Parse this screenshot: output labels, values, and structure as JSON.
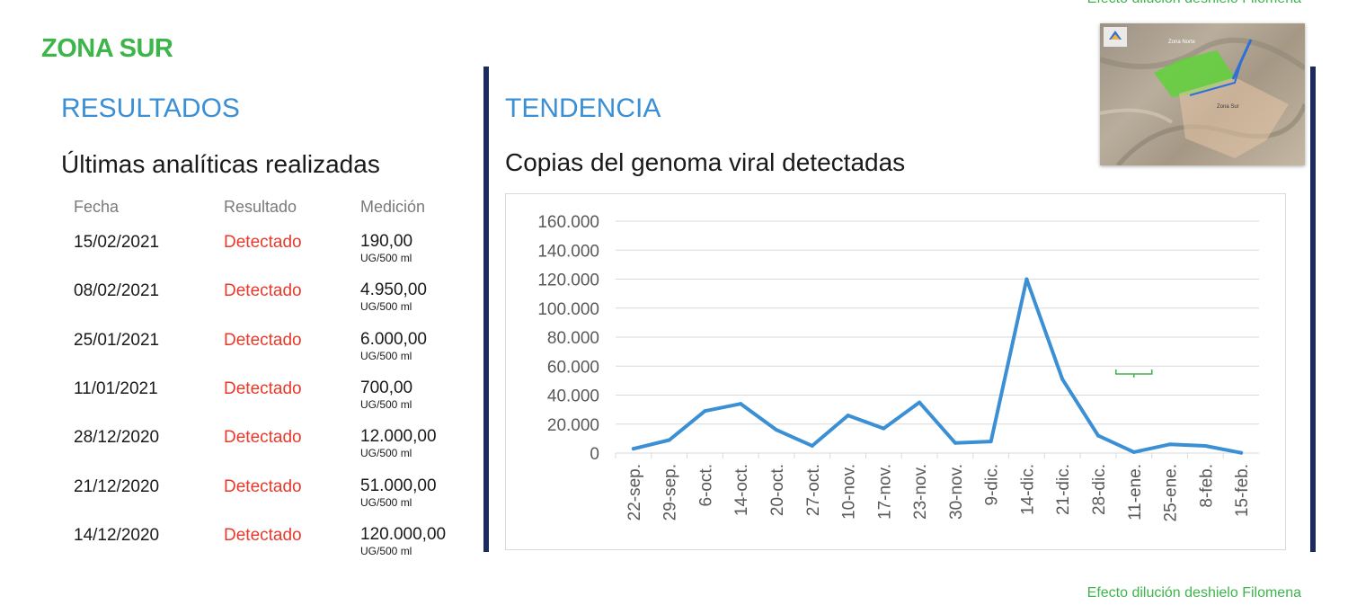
{
  "header": {
    "top_note": "Efecto dilución deshielo Filomena",
    "zone_title": "ZONA SUR"
  },
  "results": {
    "heading": "RESULTADOS",
    "subheading": "Últimas analíticas realizadas",
    "columns": [
      "Fecha",
      "Resultado",
      "Medición"
    ],
    "rows": [
      {
        "date": "15/02/2021",
        "result": "Detectado",
        "value": "190,00",
        "unit": "UG/500 ml"
      },
      {
        "date": "08/02/2021",
        "result": "Detectado",
        "value": "4.950,00",
        "unit": "UG/500 ml"
      },
      {
        "date": "25/01/2021",
        "result": "Detectado",
        "value": "6.000,00",
        "unit": "UG/500 ml"
      },
      {
        "date": "11/01/2021",
        "result": "Detectado",
        "value": "700,00",
        "unit": "UG/500 ml"
      },
      {
        "date": "28/12/2020",
        "result": "Detectado",
        "value": "12.000,00",
        "unit": "UG/500 ml"
      },
      {
        "date": "21/12/2020",
        "result": "Detectado",
        "value": "51.000,00",
        "unit": "UG/500 ml"
      },
      {
        "date": "14/12/2020",
        "result": "Detectado",
        "value": "120.000,00",
        "unit": "UG/500 ml"
      }
    ]
  },
  "trend": {
    "heading": "TENDENCIA"
  },
  "map": {
    "labels": [
      "Zona Norte",
      "Zona Sur"
    ]
  },
  "annotation": {
    "text": "Efecto dilución deshielo Filomena",
    "category": "11-ene."
  },
  "colors": {
    "green": "#3cb54a",
    "blue_heading": "#3b8fd4",
    "line": "#3b8fd4",
    "red": "#e8392b",
    "divider": "#1c2a5e"
  },
  "chart_data": {
    "type": "line",
    "title": "Copias del genoma viral detectadas",
    "categories": [
      "22-sep.",
      "29-sep.",
      "6-oct.",
      "14-oct.",
      "20-oct.",
      "27-oct.",
      "10-nov.",
      "17-nov.",
      "23-nov.",
      "30-nov.",
      "9-dic.",
      "14-dic.",
      "21-dic.",
      "28-dic.",
      "11-ene.",
      "25-ene.",
      "8-feb.",
      "15-feb."
    ],
    "values": [
      3000,
      9000,
      29000,
      34000,
      16000,
      5000,
      26000,
      17000,
      35000,
      7000,
      8000,
      120000,
      51000,
      12000,
      700,
      6000,
      4950,
      190
    ],
    "ylim": [
      0,
      160000
    ],
    "yticks": [
      0,
      20000,
      40000,
      60000,
      80000,
      100000,
      120000,
      140000,
      160000
    ],
    "ytick_labels": [
      "0",
      "20.000",
      "40.000",
      "60.000",
      "80.000",
      "100.000",
      "120.000",
      "140.000",
      "160.000"
    ],
    "grid": true,
    "legend": "none"
  }
}
